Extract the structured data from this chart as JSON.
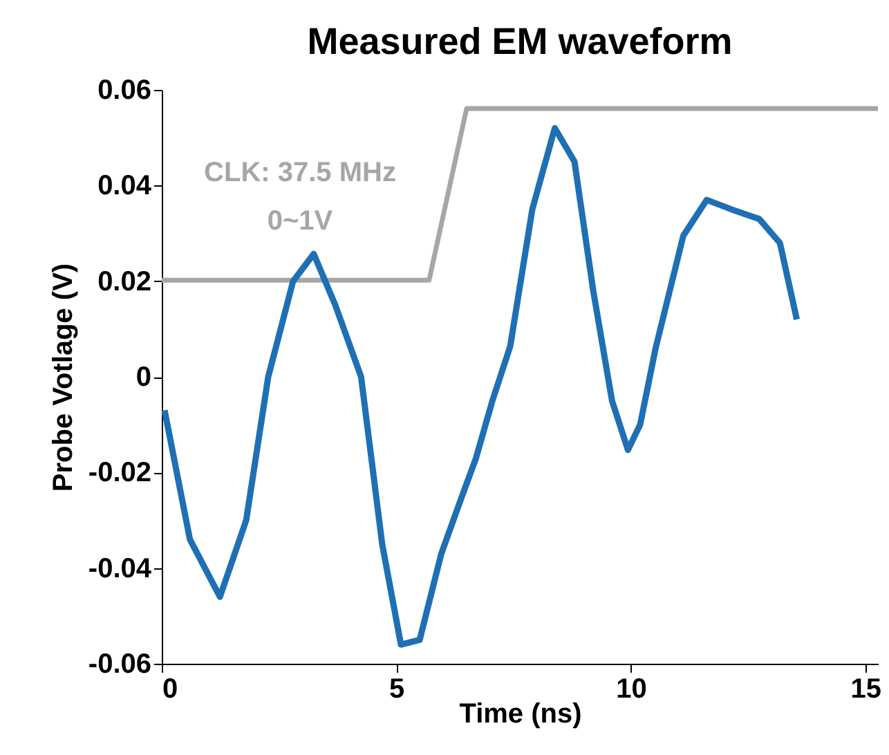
{
  "chart_data": {
    "type": "line",
    "title": "Measured EM waveform",
    "xlabel": "Time (ns)",
    "ylabel": "Probe Votlage (V)",
    "xlim": [
      0,
      15.27
    ],
    "xticks": [
      0,
      5,
      10,
      15
    ],
    "ylim": [
      -0.06,
      0.06
    ],
    "yticks": [
      -0.06,
      -0.04,
      -0.02,
      0,
      0.02,
      0.04,
      0.06
    ],
    "grid": false,
    "series": [
      {
        "color": "#a6a6a6",
        "x": [
          0,
          5.7,
          6.5,
          15.27
        ],
        "values": [
          0.0202,
          0.0202,
          0.0561,
          0.0561
        ]
      },
      {
        "color": "#1f6fb5",
        "x": [
          0.06,
          0.6,
          1.24,
          1.8,
          2.27,
          2.8,
          3.24,
          3.7,
          4.25,
          4.7,
          5.1,
          5.5,
          5.96,
          6.4,
          6.7,
          7.05,
          7.43,
          7.9,
          8.38,
          8.8,
          9.2,
          9.6,
          9.94,
          10.2,
          10.53,
          11.12,
          11.62,
          12.15,
          12.74,
          13.18,
          13.54
        ],
        "values": [
          -0.007,
          -0.034,
          -0.046,
          -0.03,
          0,
          0.02,
          0.0257,
          0.015,
          0,
          -0.035,
          -0.056,
          -0.055,
          -0.037,
          -0.025,
          -0.017,
          -0.005,
          0.0064,
          0.035,
          0.052,
          0.045,
          0.018,
          -0.005,
          -0.0153,
          -0.01,
          0.006,
          0.0295,
          0.037,
          0.035,
          0.033,
          0.028,
          0.012
        ]
      }
    ],
    "annotations": [
      "CLK: 37.5 MHz",
      "0~1V"
    ]
  }
}
